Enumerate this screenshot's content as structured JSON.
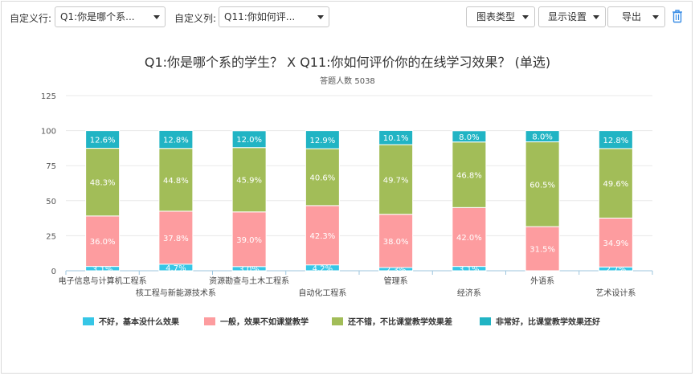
{
  "toolbar": {
    "custom_row_label": "自定义行:",
    "custom_row_value": "Q1:你是哪个系...",
    "custom_col_label": "自定义列:",
    "custom_col_value": "Q11:你如何评...",
    "chart_type_label": "图表类型",
    "display_settings_label": "显示设置",
    "export_label": "导出",
    "delete_icon": "trash-icon"
  },
  "chart_data": {
    "type": "bar",
    "stacked": true,
    "title": "Q1:你是哪个系的学生？ X Q11:你如何评价你的在线学习效果？ (单选)",
    "subtitle": "答题人数 5038",
    "ylim": [
      0,
      125
    ],
    "yticks": [
      0,
      25,
      50,
      75,
      100,
      125
    ],
    "grid": true,
    "legend_position": "bottom",
    "categories": [
      "电子信息与计算机工程系",
      "核工程与新能源技术系",
      "资源勘查与土木工程系",
      "自动化工程系",
      "管理系",
      "经济系",
      "外语系",
      "艺术设计系"
    ],
    "series": [
      {
        "name": "不好，基本没什么效果",
        "color": "#36c6e6",
        "values": [
          3.1,
          4.7,
          3.0,
          4.2,
          2.3,
          3.1,
          0,
          2.7
        ],
        "labels": [
          "3.1%",
          "4.7%",
          "3.0%",
          "4.2%",
          "2.3%",
          "3.1%",
          "",
          "2.7%"
        ]
      },
      {
        "name": "一般，效果不如课堂教学",
        "color": "#fd9c9f",
        "values": [
          36.0,
          37.8,
          39.0,
          42.3,
          38.0,
          42.0,
          31.5,
          34.9
        ],
        "labels": [
          "36.0%",
          "37.8%",
          "39.0%",
          "42.3%",
          "38.0%",
          "42.0%",
          "31.5%",
          "34.9%"
        ]
      },
      {
        "name": "还不错，不比课堂教学效果差",
        "color": "#a2bd58",
        "values": [
          48.3,
          44.8,
          45.9,
          40.6,
          49.7,
          46.8,
          60.5,
          49.6
        ],
        "labels": [
          "48.3%",
          "44.8%",
          "45.9%",
          "40.6%",
          "49.7%",
          "46.8%",
          "60.5%",
          "49.6%"
        ]
      },
      {
        "name": "非常好，比课堂教学效果还好",
        "color": "#21b4c4",
        "values": [
          12.6,
          12.8,
          12.0,
          12.9,
          10.1,
          8.0,
          8.0,
          12.8
        ],
        "labels": [
          "12.6%",
          "12.8%",
          "12.0%",
          "12.9%",
          "10.1%",
          "8.0%",
          "8.0%",
          "12.8%"
        ]
      }
    ]
  }
}
